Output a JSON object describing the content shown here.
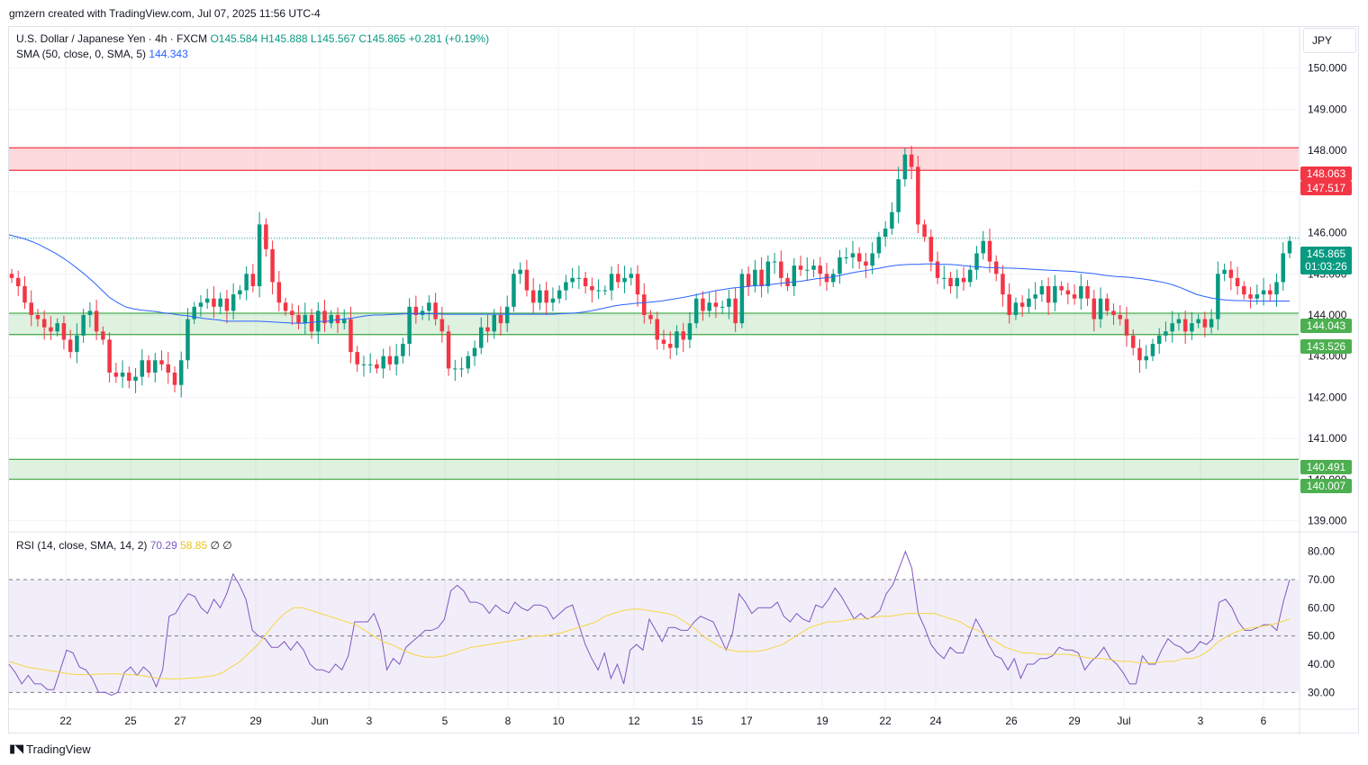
{
  "caption": "gmzern created with TradingView.com, Jul 07, 2025 11:56 UTC-4",
  "legend": {
    "symbol": "U.S. Dollar / Japanese Yen · 4h · FXCM",
    "open": "O145.584",
    "high": "H145.888",
    "low": "L145.567",
    "close": "C145.865",
    "change": "+0.281 (+0.19%)",
    "sma_label": "SMA (50, close, 0, SMA, 5)",
    "sma_value": "144.343"
  },
  "currency": "JPY",
  "rsi_legend": {
    "label": "RSI (14, close, SMA, 14, 2)",
    "rsi_value": "70.29",
    "sma_value": "58.85",
    "extra": "∅ ∅"
  },
  "footer": "TradingView",
  "colors": {
    "up": "#089981",
    "down": "#f23645",
    "sma": "#2962ff",
    "rsi": "#7e57c2",
    "rsi_ma": "#f5d643",
    "resistance": "#f23645",
    "support": "#4caf50"
  },
  "price_tags": [
    {
      "value": "148.063",
      "color": "#f23645"
    },
    {
      "value": "147.517",
      "color": "#f23645"
    },
    {
      "value": "145.865",
      "sub": "01:03:26",
      "color": "#089981"
    },
    {
      "value": "144.043",
      "color": "#4caf50"
    },
    {
      "value": "143.526",
      "color": "#4caf50"
    },
    {
      "value": "140.491",
      "color": "#4caf50"
    },
    {
      "value": "140.007",
      "color": "#4caf50"
    }
  ],
  "chart_data": [
    {
      "type": "candlestick",
      "ylim": [
        138.75,
        151.0
      ],
      "y_ticks": [
        139,
        140,
        141,
        142,
        143,
        144,
        145,
        146,
        147,
        148,
        149,
        150
      ],
      "y_tick_labels": [
        "139.000",
        "140.000",
        "141.000",
        "142.000",
        "143.000",
        "144.000",
        "145.000",
        "146.000",
        "147.000",
        "148.000",
        "149.000",
        "150.000"
      ],
      "x_ticks": [
        "22",
        "25",
        "27",
        "29",
        "Jun",
        "3",
        "5",
        "8",
        "10",
        "12",
        "15",
        "17",
        "19",
        "22",
        "24",
        "26",
        "29",
        "Jul",
        "3",
        "6"
      ],
      "zones": [
        {
          "kind": "resistance",
          "from": 147.517,
          "to": 148.063
        },
        {
          "kind": "support",
          "from": 143.526,
          "to": 144.043
        },
        {
          "kind": "support",
          "from": 140.007,
          "to": 140.491
        }
      ],
      "last_price": 145.865,
      "series": [
        {
          "name": "USD/JPY",
          "kind": "close",
          "values": [
            144.9,
            144.7,
            144.3,
            144.0,
            143.9,
            143.7,
            143.6,
            143.8,
            143.4,
            143.1,
            143.5,
            144.0,
            144.1,
            143.6,
            143.4,
            142.6,
            142.5,
            142.6,
            142.4,
            142.5,
            142.9,
            142.6,
            142.9,
            142.8,
            142.6,
            142.3,
            142.9,
            143.9,
            144.2,
            144.3,
            144.4,
            144.2,
            144.4,
            144.1,
            144.5,
            144.6,
            145.0,
            144.7,
            146.2,
            145.6,
            144.8,
            144.3,
            144.1,
            144.0,
            143.8,
            144.0,
            143.6,
            144.1,
            143.8,
            144.0,
            143.8,
            143.9,
            143.1,
            142.8,
            142.8,
            142.8,
            142.7,
            143.0,
            142.8,
            143.0,
            143.3,
            144.2,
            144.0,
            144.1,
            144.3,
            143.9,
            143.6,
            142.7,
            142.7,
            142.7,
            143.0,
            143.2,
            143.7,
            143.6,
            144.0,
            143.8,
            144.2,
            145.0,
            145.1,
            144.6,
            144.3,
            144.6,
            144.3,
            144.4,
            144.6,
            144.8,
            144.9,
            144.9,
            144.7,
            144.6,
            144.6,
            144.6,
            145.0,
            144.8,
            144.9,
            145.0,
            144.5,
            144.0,
            143.9,
            143.4,
            143.3,
            143.2,
            143.6,
            143.4,
            143.8,
            144.4,
            144.1,
            144.3,
            144.2,
            144.2,
            144.4,
            143.8,
            145.0,
            144.7,
            145.1,
            144.7,
            145.3,
            145.3,
            144.9,
            144.7,
            145.2,
            145.1,
            145.1,
            145.2,
            145.0,
            144.8,
            145.0,
            145.4,
            145.4,
            145.5,
            145.3,
            145.2,
            145.5,
            145.9,
            146.1,
            146.5,
            147.3,
            147.9,
            147.6,
            146.2,
            145.9,
            145.3,
            144.9,
            144.9,
            144.7,
            144.9,
            144.8,
            145.1,
            145.5,
            145.8,
            145.3,
            145.0,
            144.5,
            144.0,
            144.3,
            144.2,
            144.4,
            144.5,
            144.7,
            144.3,
            144.7,
            144.6,
            144.5,
            144.4,
            144.7,
            144.4,
            143.9,
            144.4,
            144.1,
            144.0,
            143.9,
            143.5,
            143.2,
            142.9,
            143.0,
            143.3,
            143.5,
            143.6,
            143.8,
            143.9,
            143.6,
            143.8,
            143.9,
            143.7,
            143.9,
            145.0,
            145.1,
            144.9,
            144.7,
            144.5,
            144.4,
            144.5,
            144.6,
            144.5,
            144.8,
            145.5,
            145.8
          ]
        },
        {
          "name": "SMA (50, close, 0, SMA, 5)",
          "kind": "sma",
          "values": [
            145.95,
            145.9,
            145.85,
            145.78,
            145.7,
            145.6,
            145.5,
            145.38,
            145.25,
            145.1,
            144.95,
            144.78,
            144.6,
            144.42,
            144.3,
            144.2,
            144.15,
            144.12,
            144.1,
            144.08,
            144.05,
            144.03,
            144.0,
            143.98,
            143.95,
            143.92,
            143.9,
            143.88,
            143.85,
            143.85,
            143.85,
            143.85,
            143.85,
            143.84,
            143.83,
            143.82,
            143.81,
            143.8,
            143.8,
            143.82,
            143.84,
            143.85,
            143.88,
            143.9,
            143.92,
            143.95,
            143.98,
            144.0,
            144.0,
            144.01,
            144.02,
            144.03,
            144.03,
            144.03,
            144.03,
            144.03,
            144.02,
            144.02,
            144.02,
            144.02,
            144.02,
            144.02,
            144.02,
            144.02,
            144.02,
            144.02,
            144.02,
            144.02,
            144.02,
            144.02,
            144.02,
            144.03,
            144.04,
            144.05,
            144.07,
            144.1,
            144.14,
            144.18,
            144.22,
            144.25,
            144.27,
            144.29,
            144.3,
            144.32,
            144.34,
            144.37,
            144.4,
            144.43,
            144.47,
            144.51,
            144.55,
            144.59,
            144.62,
            144.65,
            144.67,
            144.69,
            144.71,
            144.72,
            144.74,
            144.76,
            144.78,
            144.8,
            144.82,
            144.85,
            144.88,
            144.9,
            144.92,
            144.96,
            145.0,
            145.04,
            145.07,
            145.1,
            145.13,
            145.17,
            145.2,
            145.22,
            145.23,
            145.23,
            145.24,
            145.24,
            145.23,
            145.23,
            145.22,
            145.2,
            145.18,
            145.17,
            145.15,
            145.15,
            145.14,
            145.14,
            145.13,
            145.12,
            145.11,
            145.1,
            145.09,
            145.08,
            145.07,
            145.06,
            145.04,
            145.02,
            145.0,
            144.97,
            144.95,
            144.93,
            144.92,
            144.9,
            144.88,
            144.85,
            144.82,
            144.78,
            144.73,
            144.66,
            144.58,
            144.5,
            144.45,
            144.41,
            144.38,
            144.36,
            144.35,
            144.35,
            144.34,
            144.34,
            144.34,
            144.34,
            144.34,
            144.34
          ]
        },
        {
          "name": "RSI (14, close, SMA, 14, 2)",
          "kind": "rsi",
          "values": [
            40,
            37,
            33,
            36,
            33,
            33,
            31,
            31,
            38,
            45,
            44,
            39,
            38,
            35,
            30,
            30,
            29,
            30,
            37,
            39,
            36,
            39,
            37,
            32,
            38,
            57,
            58,
            62,
            65,
            64,
            60,
            58,
            63,
            60,
            65,
            72,
            68,
            63,
            52,
            50,
            49,
            46,
            46,
            48,
            45,
            48,
            45,
            40,
            38,
            38,
            37,
            40,
            38,
            43,
            55,
            55,
            55,
            58,
            52,
            38,
            42,
            40,
            46,
            48,
            50,
            52,
            52,
            53,
            56,
            66,
            68,
            66,
            62,
            62,
            61,
            58,
            61,
            59,
            58,
            62,
            60,
            59,
            61,
            61,
            60,
            56,
            58,
            60,
            61,
            54,
            47,
            42,
            38,
            44,
            35,
            40,
            33,
            45,
            47,
            45,
            56,
            52,
            48,
            53,
            53,
            52,
            52,
            55,
            57,
            56,
            55,
            50,
            45,
            51,
            65,
            62,
            58,
            60,
            60,
            60,
            62,
            57,
            55,
            58,
            56,
            55,
            61,
            60,
            63,
            67,
            64,
            60,
            56,
            58,
            56,
            57,
            59,
            65,
            68,
            74,
            80,
            74,
            58,
            53,
            47,
            44,
            42,
            46,
            44,
            44,
            50,
            56,
            52,
            47,
            43,
            42,
            38,
            42,
            35,
            40,
            40,
            42,
            42,
            43,
            46,
            45,
            45,
            44,
            38,
            41,
            43,
            46,
            42,
            40,
            37,
            33,
            33,
            43,
            40,
            40,
            45,
            49,
            47,
            46,
            44,
            45,
            48,
            47,
            49,
            62,
            63,
            60,
            55,
            52,
            52,
            53,
            54,
            54,
            52,
            62,
            70
          ]
        },
        {
          "name": "RSI-based MA",
          "kind": "rsi_ma",
          "values": [
            41,
            40,
            39,
            38.5,
            38,
            37.5,
            37,
            36.5,
            36.3,
            36.3,
            36.5,
            36.6,
            36.6,
            36.4,
            36.2,
            35.9,
            35.4,
            35.0,
            34.8,
            34.8,
            35.0,
            35.2,
            35.5,
            35.9,
            37,
            39,
            41,
            44,
            47,
            51,
            55,
            58,
            60,
            60,
            59,
            58,
            57,
            56,
            55,
            54,
            52,
            50,
            48,
            47,
            45.5,
            44,
            43,
            42.5,
            42.5,
            43,
            44,
            45,
            46,
            46.5,
            47,
            47.5,
            48,
            48.5,
            49,
            50,
            50,
            50.5,
            51,
            52,
            53,
            54,
            55,
            57,
            58,
            59,
            59.5,
            59.5,
            59,
            58.5,
            58,
            57,
            55,
            53,
            50,
            48,
            46,
            45,
            44.5,
            44.5,
            44.5,
            45,
            46,
            47,
            49,
            51,
            53,
            54,
            55,
            55,
            55.5,
            56,
            56,
            56.5,
            57,
            57,
            57.5,
            58,
            58,
            58,
            58,
            57,
            56,
            55,
            53,
            52,
            50,
            48,
            46,
            45,
            44,
            44,
            43.5,
            43.5,
            43.5,
            43.5,
            43,
            42.5,
            42,
            42,
            41.5,
            41,
            41,
            40.5,
            40.5,
            40.5,
            41,
            41,
            42,
            42,
            43,
            45,
            48,
            50,
            51.5,
            52.5,
            53,
            53.5,
            54,
            55,
            56
          ]
        }
      ]
    }
  ]
}
